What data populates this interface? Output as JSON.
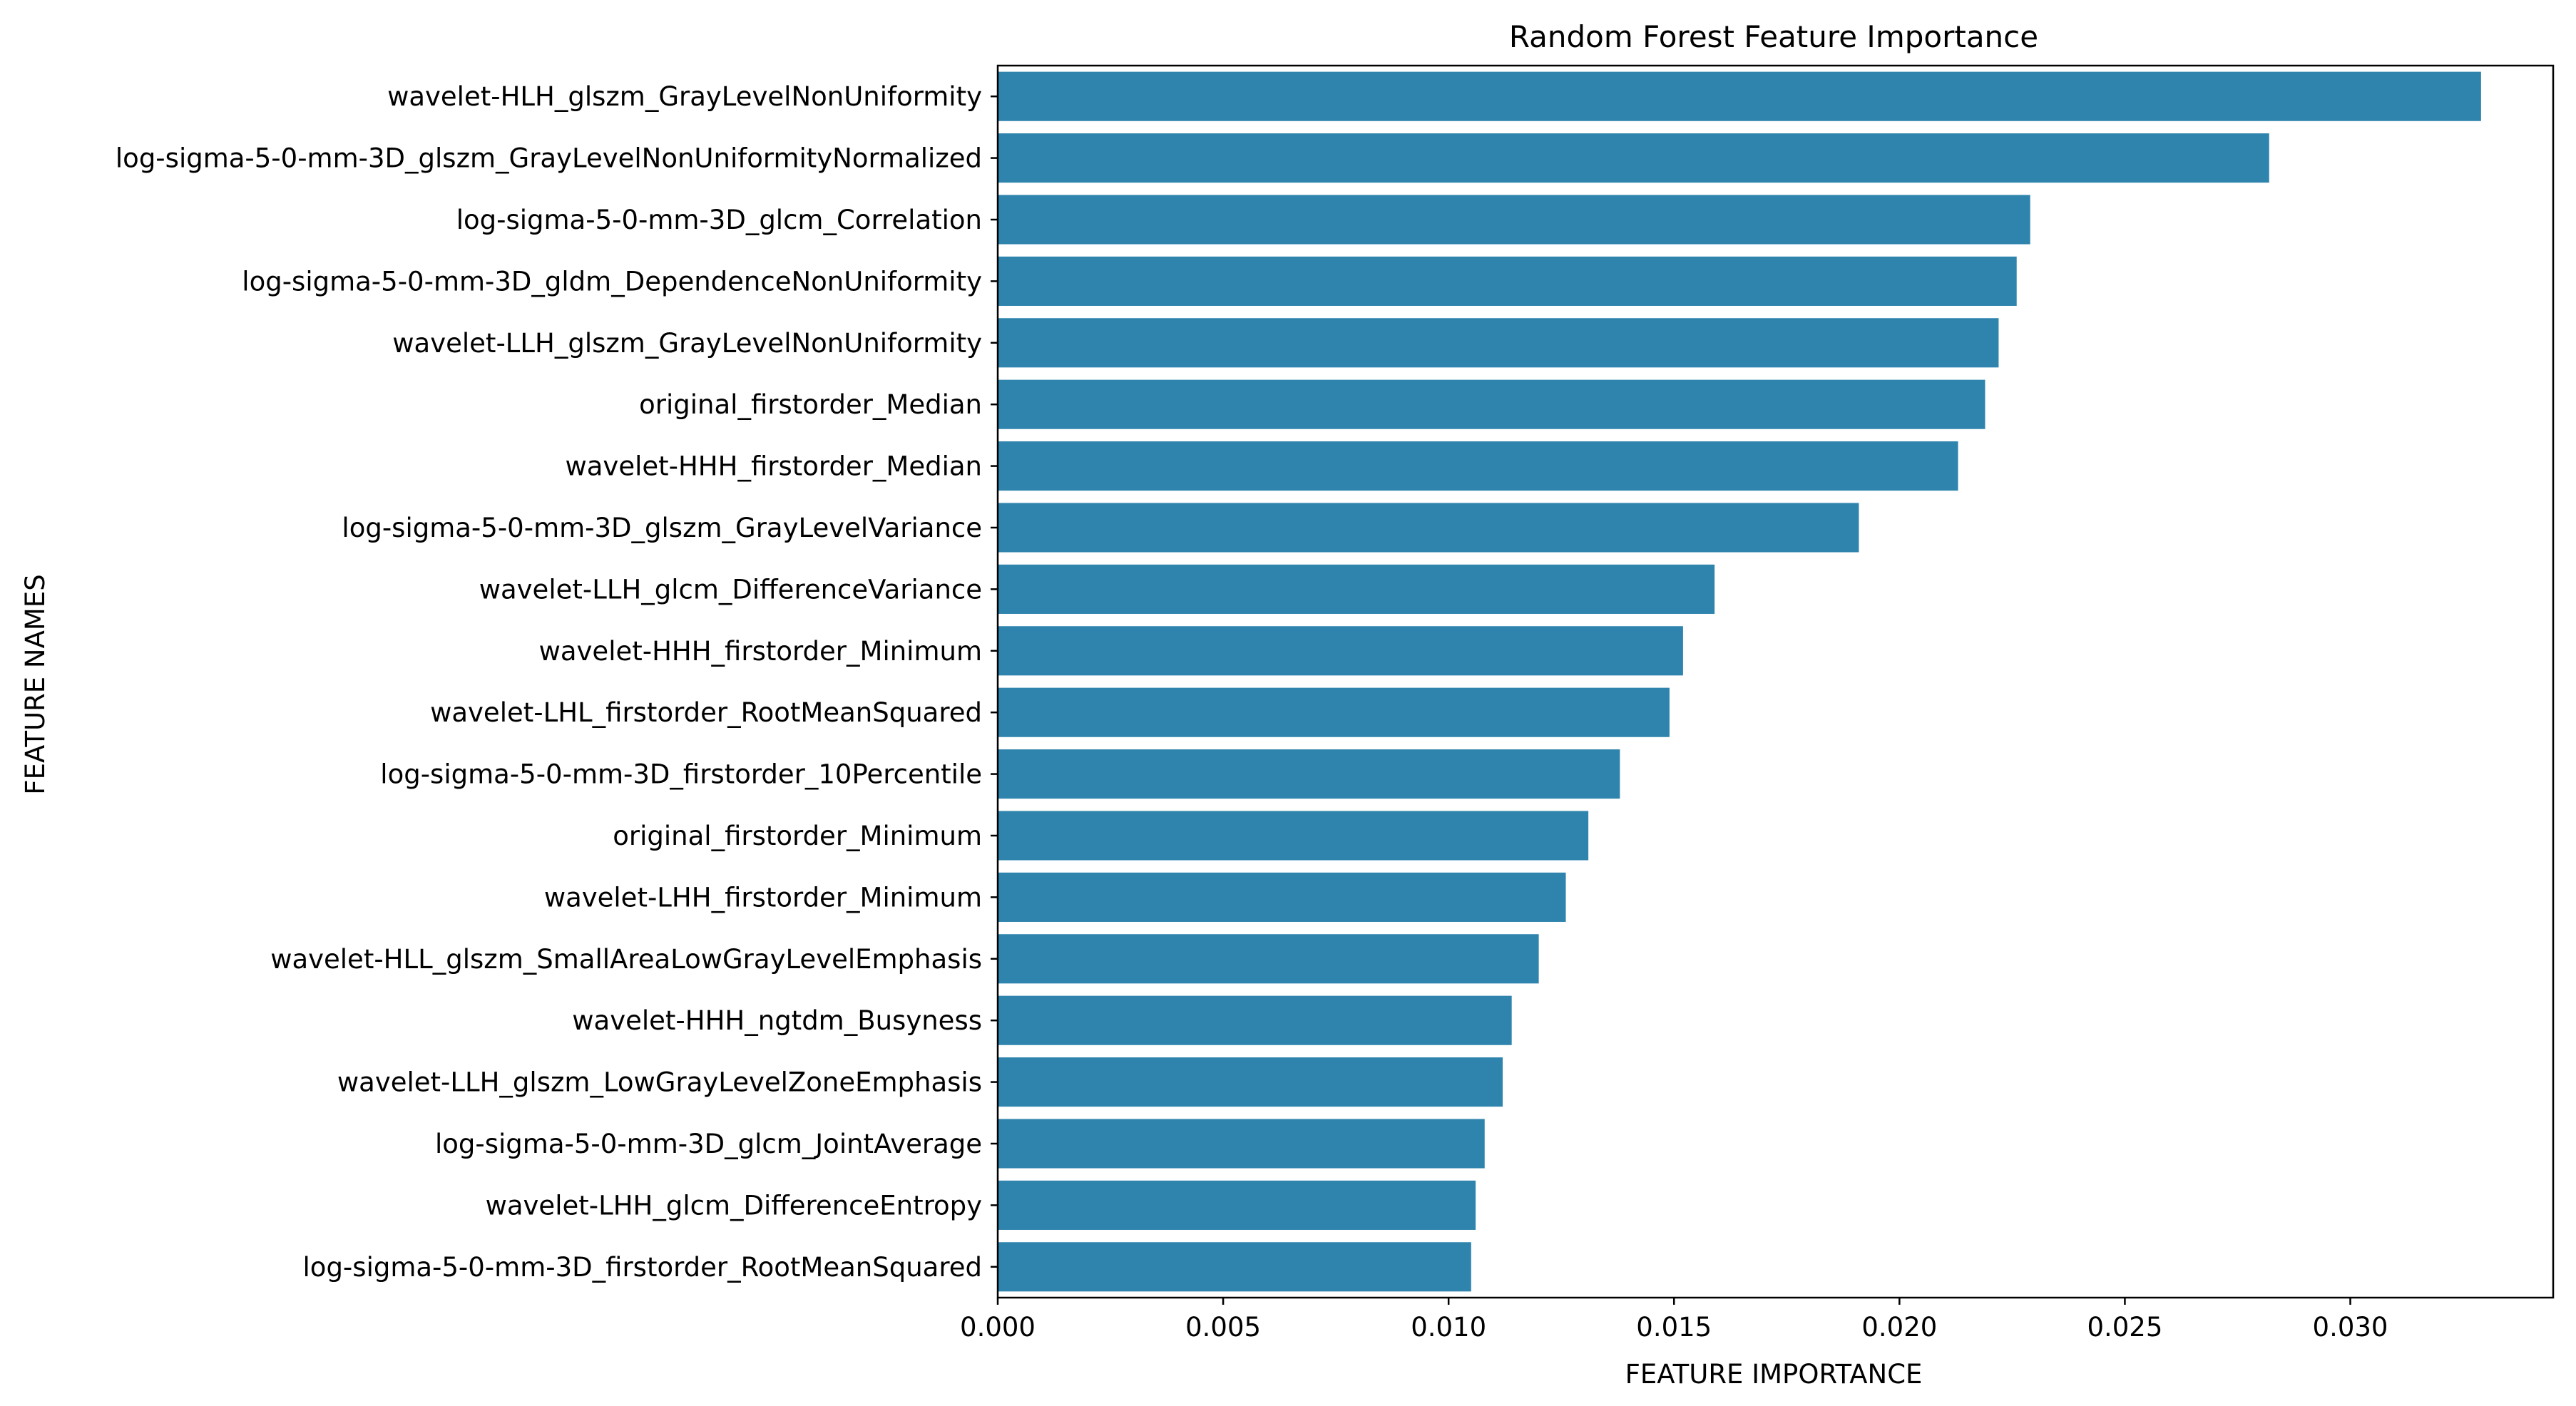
{
  "chart_data": {
    "type": "bar",
    "orientation": "horizontal",
    "title": "Random Forest Feature Importance",
    "xlabel": "FEATURE IMPORTANCE",
    "ylabel": "FEATURE NAMES",
    "xlim": [
      0,
      0.0345
    ],
    "xticks": [
      0.0,
      0.005,
      0.01,
      0.015,
      0.02,
      0.025,
      0.03
    ],
    "xtick_labels": [
      "0.000",
      "0.005",
      "0.010",
      "0.015",
      "0.020",
      "0.025",
      "0.030"
    ],
    "grid": false,
    "bar_color": "#2e84ad",
    "categories": [
      "wavelet-HLH_glszm_GrayLevelNonUniformity",
      "log-sigma-5-0-mm-3D_glszm_GrayLevelNonUniformityNormalized",
      "log-sigma-5-0-mm-3D_glcm_Correlation",
      "log-sigma-5-0-mm-3D_gldm_DependenceNonUniformity",
      "wavelet-LLH_glszm_GrayLevelNonUniformity",
      "original_firstorder_Median",
      "wavelet-HHH_firstorder_Median",
      "log-sigma-5-0-mm-3D_glszm_GrayLevelVariance",
      "wavelet-LLH_glcm_DifferenceVariance",
      "wavelet-HHH_firstorder_Minimum",
      "wavelet-LHL_firstorder_RootMeanSquared",
      "log-sigma-5-0-mm-3D_firstorder_10Percentile",
      "original_firstorder_Minimum",
      "wavelet-LHH_firstorder_Minimum",
      "wavelet-HLL_glszm_SmallAreaLowGrayLevelEmphasis",
      "wavelet-HHH_ngtdm_Busyness",
      "wavelet-LLH_glszm_LowGrayLevelZoneEmphasis",
      "log-sigma-5-0-mm-3D_glcm_JointAverage",
      "wavelet-LHH_glcm_DifferenceEntropy",
      "log-sigma-5-0-mm-3D_firstorder_RootMeanSquared"
    ],
    "values": [
      0.0329,
      0.0282,
      0.0229,
      0.0226,
      0.0222,
      0.0219,
      0.0213,
      0.0191,
      0.0159,
      0.0152,
      0.0149,
      0.0138,
      0.0131,
      0.0126,
      0.012,
      0.0114,
      0.0112,
      0.0108,
      0.0106,
      0.0105
    ]
  }
}
